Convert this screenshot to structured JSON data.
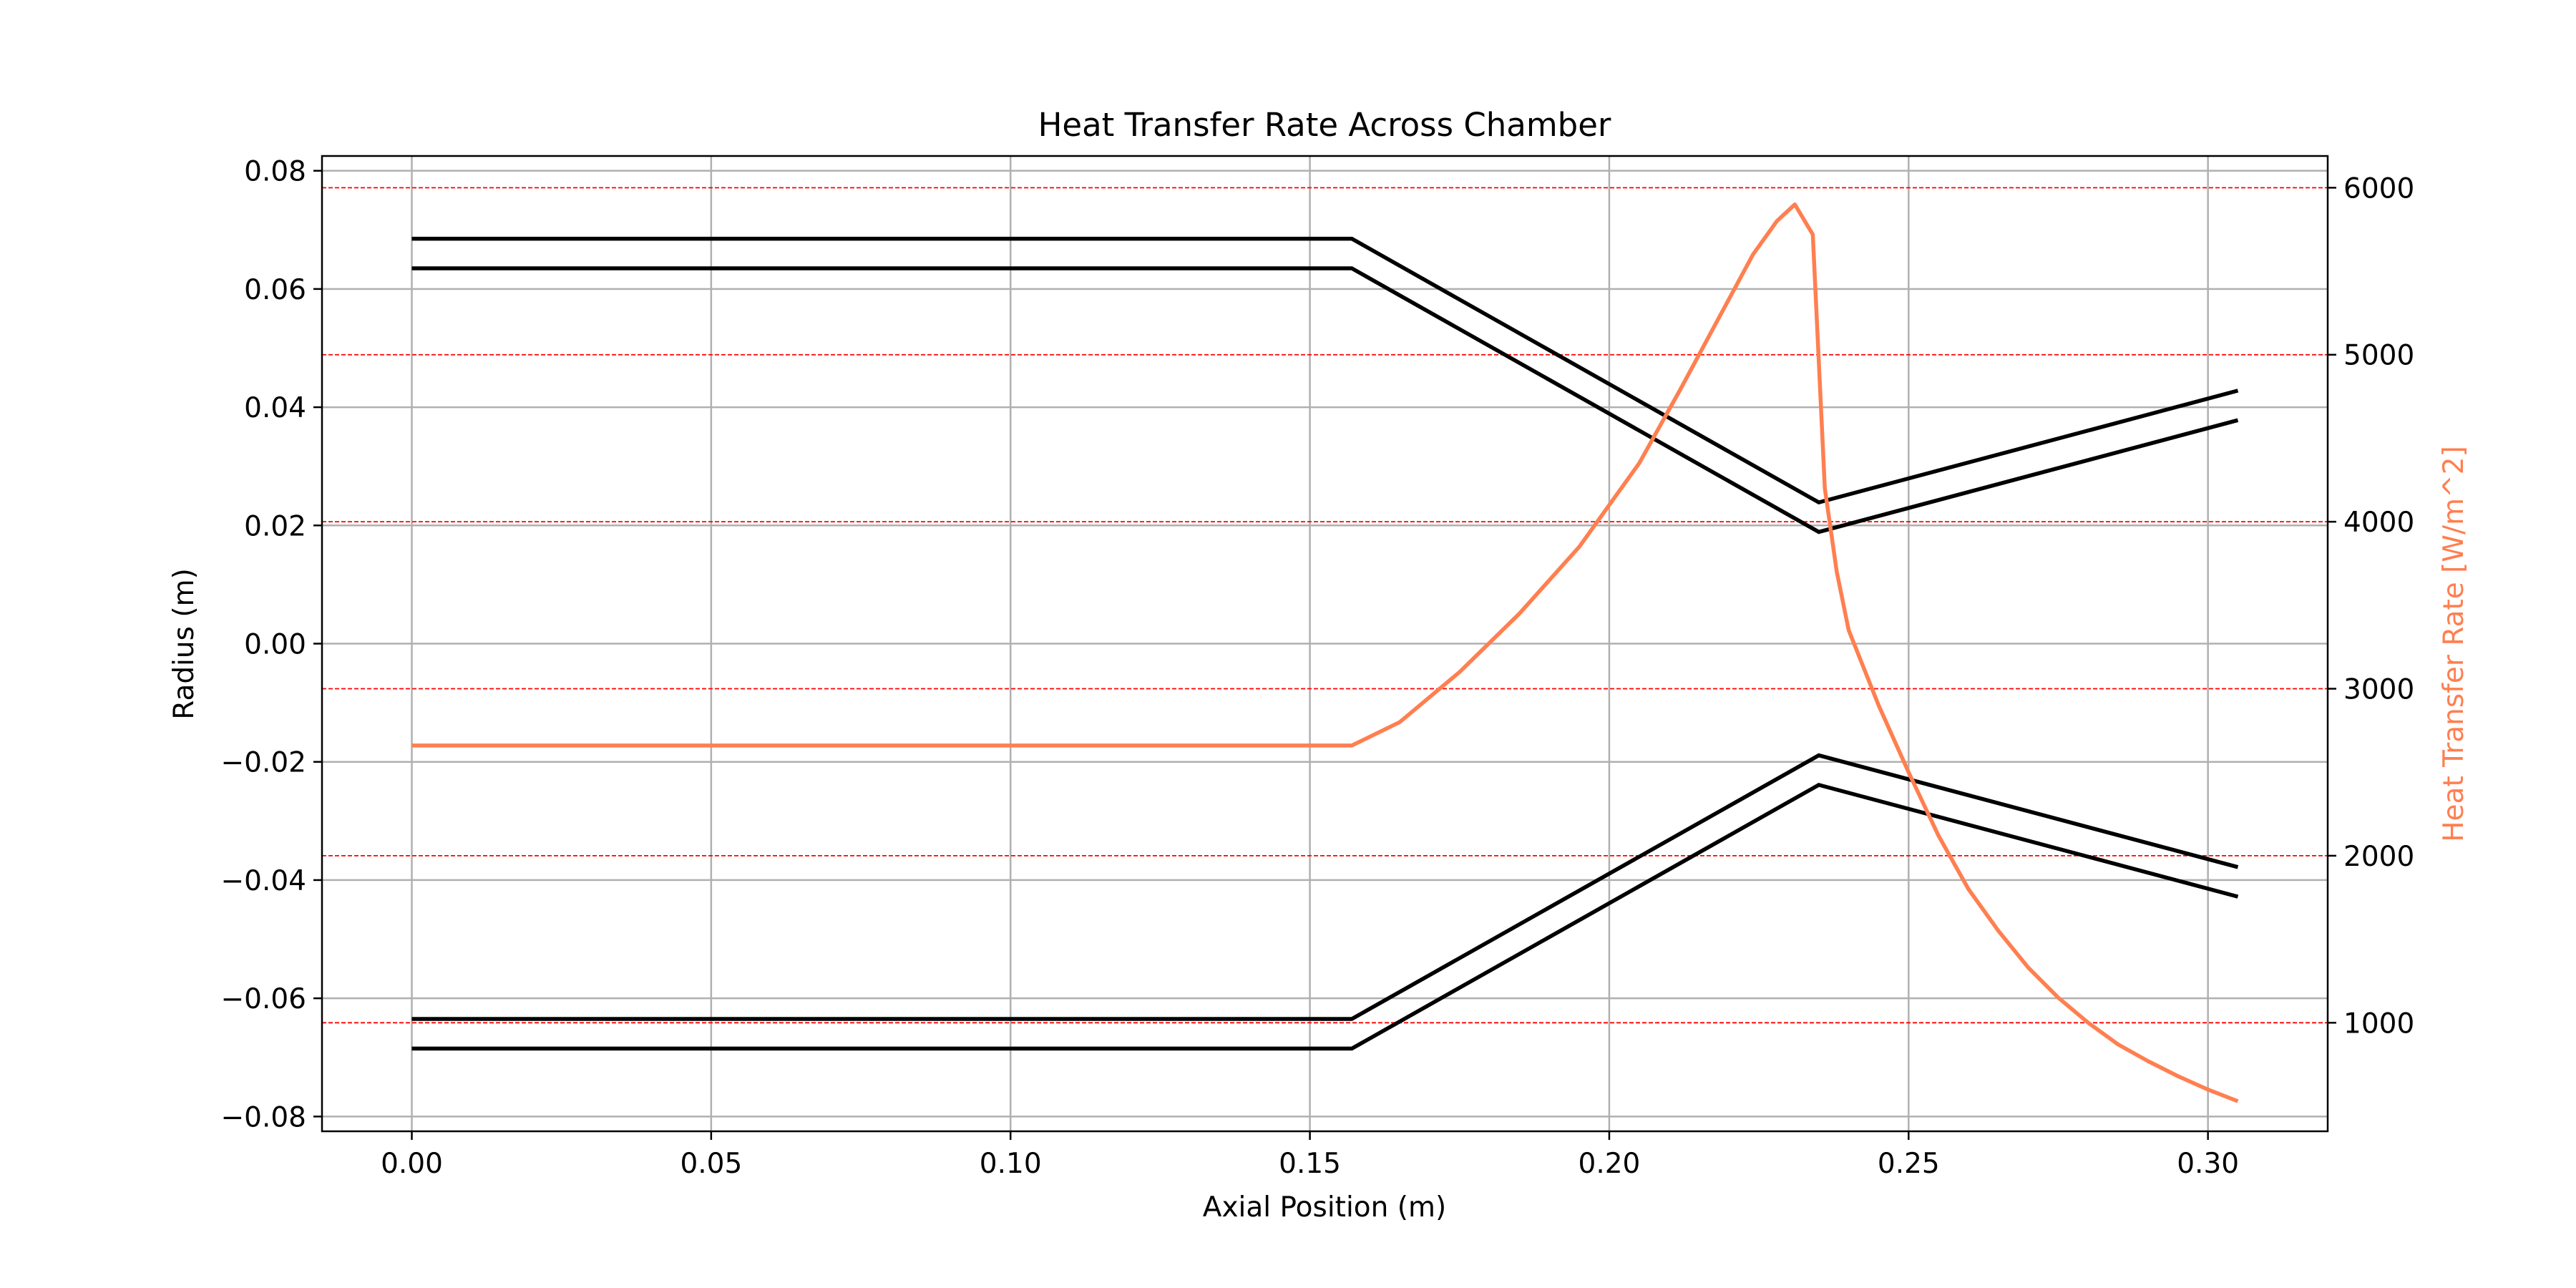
{
  "chart_data": {
    "type": "line",
    "title": "Heat Transfer Rate Across Chamber",
    "xlabel": "Axial Position (m)",
    "ylabel": "Radius (m)",
    "y2label": "Heat Transfer Rate [W/m^2]",
    "xlim": [
      -0.015,
      0.32
    ],
    "ylim": [
      -0.0825,
      0.0825
    ],
    "y2lim": [
      350,
      6190
    ],
    "xticks": [
      0.0,
      0.05,
      0.1,
      0.15,
      0.2,
      0.25,
      0.3
    ],
    "xtick_labels": [
      "0.00",
      "0.05",
      "0.10",
      "0.15",
      "0.20",
      "0.25",
      "0.30"
    ],
    "yticks": [
      -0.08,
      -0.06,
      -0.04,
      -0.02,
      0.0,
      0.02,
      0.04,
      0.06,
      0.08
    ],
    "ytick_labels": [
      "−0.08",
      "−0.06",
      "−0.04",
      "−0.02",
      "0.00",
      "0.02",
      "0.04",
      "0.06",
      "0.08"
    ],
    "y2ticks": [
      1000,
      2000,
      3000,
      4000,
      5000,
      6000
    ],
    "y2tick_labels": [
      "1000",
      "2000",
      "3000",
      "4000",
      "5000",
      "6000"
    ],
    "grid": true,
    "colors": {
      "contour": "#000000",
      "heat": "#ff7f50",
      "grid": "#b0b0b0",
      "ref_lines": "#ff0000"
    },
    "contour_series": [
      {
        "x": [
          0.0,
          0.157,
          0.235,
          0.305
        ],
        "y": [
          0.0685,
          0.0685,
          0.0239,
          0.0428
        ]
      },
      {
        "x": [
          0.0,
          0.157,
          0.235,
          0.305
        ],
        "y": [
          0.0635,
          0.0635,
          0.0189,
          0.0378
        ]
      },
      {
        "x": [
          0.0,
          0.157,
          0.235,
          0.305
        ],
        "y": [
          -0.0635,
          -0.0635,
          -0.0189,
          -0.0378
        ]
      },
      {
        "x": [
          0.0,
          0.157,
          0.235,
          0.305
        ],
        "y": [
          -0.0685,
          -0.0685,
          -0.0239,
          -0.0428
        ]
      }
    ],
    "heat_series": {
      "x": [
        0.0,
        0.157,
        0.165,
        0.175,
        0.185,
        0.195,
        0.205,
        0.212,
        0.218,
        0.224,
        0.228,
        0.231,
        0.234,
        0.236,
        0.238,
        0.24,
        0.245,
        0.25,
        0.255,
        0.26,
        0.265,
        0.27,
        0.275,
        0.28,
        0.285,
        0.29,
        0.295,
        0.3,
        0.305
      ],
      "y": [
        2660,
        2660,
        2800,
        3100,
        3450,
        3850,
        4350,
        4800,
        5200,
        5600,
        5800,
        5900,
        5720,
        4200,
        3700,
        3350,
        2900,
        2500,
        2120,
        1800,
        1550,
        1330,
        1150,
        1000,
        870,
        770,
        680,
        600,
        530
      ]
    },
    "reference_lines_y2": [
      1000,
      2000,
      3000,
      4000,
      5000,
      6000
    ]
  }
}
